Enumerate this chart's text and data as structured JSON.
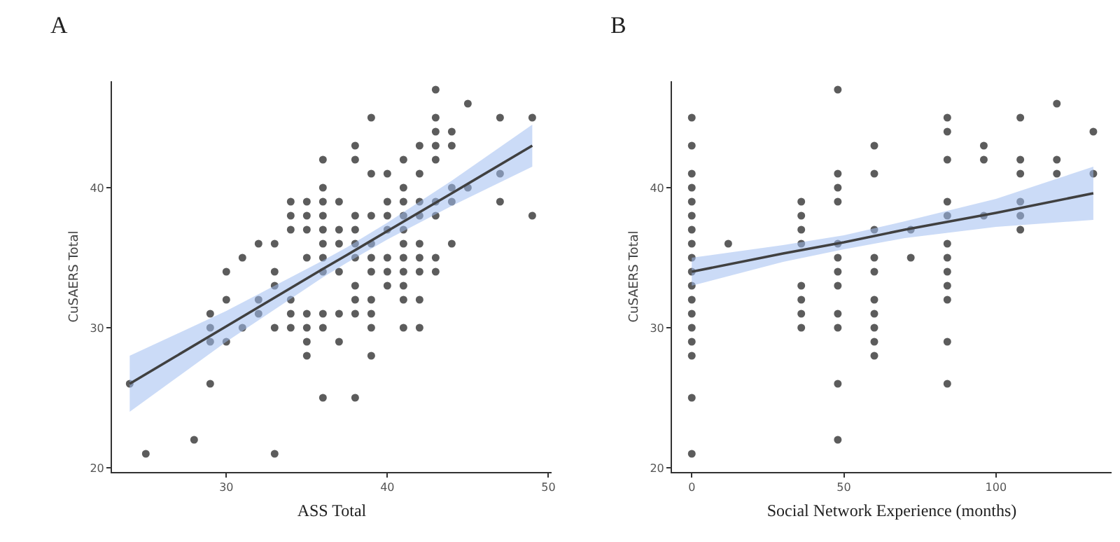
{
  "chart_data": [
    {
      "type": "scatter",
      "title": "A",
      "xlabel": "ASS Total",
      "ylabel": "CuSAERS Total",
      "xlim": [
        22.9,
        50.2
      ],
      "ylim": [
        19.7,
        47.6
      ],
      "xticks": [
        30,
        40,
        50
      ],
      "yticks": [
        20,
        30,
        40
      ],
      "grid": false,
      "marker": "circle",
      "series": [
        {
          "color": "#333333",
          "x": [
            39,
            43,
            47,
            49,
            43,
            44,
            38,
            42,
            43,
            44,
            36,
            38,
            41,
            43,
            39,
            40,
            42,
            47,
            36,
            41,
            44,
            45,
            34,
            35,
            36,
            37,
            40,
            41,
            42,
            43,
            44,
            47,
            34,
            35,
            36,
            38,
            39,
            40,
            41,
            42,
            43,
            49,
            34,
            35,
            36,
            37,
            38,
            40,
            41,
            32,
            33,
            36,
            37,
            38,
            39,
            41,
            42,
            44,
            31,
            35,
            36,
            38,
            39,
            40,
            41,
            42,
            43,
            30,
            33,
            36,
            37,
            39,
            40,
            41,
            42,
            43,
            33,
            38,
            40,
            41,
            30,
            32,
            34,
            38,
            39,
            41,
            42,
            29,
            32,
            34,
            35,
            36,
            37,
            38,
            39,
            29,
            31,
            33,
            34,
            35,
            36,
            39,
            41,
            42,
            29,
            30,
            35,
            37,
            35,
            39,
            24,
            29,
            36,
            38,
            28,
            25,
            33,
            43,
            45
          ],
          "values": [
            45,
            45,
            45,
            45,
            44,
            44,
            43,
            43,
            43,
            43,
            42,
            42,
            42,
            42,
            41,
            41,
            41,
            41,
            40,
            40,
            40,
            40,
            39,
            39,
            39,
            39,
            39,
            39,
            39,
            39,
            39,
            39,
            38,
            38,
            38,
            38,
            38,
            38,
            38,
            38,
            38,
            38,
            37,
            37,
            37,
            37,
            37,
            37,
            37,
            36,
            36,
            36,
            36,
            36,
            36,
            36,
            36,
            36,
            35,
            35,
            35,
            35,
            35,
            35,
            35,
            35,
            35,
            34,
            34,
            34,
            34,
            34,
            34,
            34,
            34,
            34,
            33,
            33,
            33,
            33,
            32,
            32,
            32,
            32,
            32,
            32,
            32,
            31,
            31,
            31,
            31,
            31,
            31,
            31,
            31,
            30,
            30,
            30,
            30,
            30,
            30,
            30,
            30,
            30,
            29,
            29,
            29,
            29,
            28,
            28,
            26,
            26,
            25,
            25,
            22,
            21,
            21,
            47,
            46
          ]
        },
        {
          "type": "line",
          "color": "#404040",
          "line_style": "solid",
          "marker": "none",
          "x": [
            24,
            30,
            36,
            37.5,
            40,
            44,
            49
          ],
          "values": [
            26,
            30.1,
            34.2,
            35.2,
            36.9,
            39.6,
            43
          ],
          "lower": [
            24,
            29,
            33.6,
            34.65,
            36.3,
            38.7,
            41.5
          ],
          "upper": [
            28,
            31.2,
            34.8,
            35.75,
            37.5,
            40.5,
            44.5
          ]
        }
      ]
    },
    {
      "type": "scatter",
      "title": "B",
      "xlabel": "Social Network Experience (months)",
      "ylabel": "CuSAERS Total",
      "xlim": [
        -6.5,
        138
      ],
      "ylim": [
        19.7,
        47.6
      ],
      "xticks": [
        0,
        50,
        100
      ],
      "yticks": [
        20,
        30,
        40
      ],
      "grid": false,
      "marker": "circle",
      "series": [
        {
          "color": "#333333",
          "x": [
            0,
            0,
            0,
            0,
            0,
            0,
            0,
            0,
            0,
            0,
            0,
            0,
            0,
            0,
            0,
            0,
            0,
            0,
            12,
            36,
            36,
            36,
            36,
            36,
            36,
            36,
            36,
            48,
            48,
            48,
            48,
            48,
            48,
            48,
            48,
            48,
            48,
            48,
            48,
            60,
            60,
            60,
            60,
            60,
            60,
            60,
            60,
            60,
            60,
            72,
            72,
            84,
            84,
            84,
            84,
            84,
            84,
            84,
            84,
            84,
            84,
            84,
            84,
            96,
            96,
            96,
            108,
            108,
            108,
            108,
            108,
            108,
            120,
            120,
            120,
            132,
            132
          ],
          "values": [
            45,
            43,
            41,
            40,
            39,
            38,
            37,
            36,
            35,
            34,
            33,
            32,
            31,
            30,
            29,
            28,
            25,
            21,
            36,
            39,
            38,
            37,
            36,
            33,
            32,
            31,
            30,
            47,
            41,
            40,
            39,
            36,
            35,
            34,
            33,
            31,
            30,
            26,
            22,
            43,
            41,
            37,
            35,
            34,
            32,
            31,
            30,
            29,
            28,
            37,
            35,
            45,
            44,
            42,
            39,
            38,
            36,
            35,
            34,
            33,
            32,
            29,
            26,
            43,
            42,
            38,
            45,
            42,
            41,
            39,
            38,
            37,
            46,
            42,
            41,
            44,
            41
          ]
        },
        {
          "type": "line",
          "color": "#404040",
          "line_style": "solid",
          "marker": "none",
          "x": [
            0,
            30,
            50,
            70,
            100,
            132
          ],
          "values": [
            34,
            35.3,
            36.1,
            37,
            38.2,
            39.6
          ],
          "lower": [
            33,
            34.7,
            35.6,
            36.4,
            37.2,
            37.7
          ],
          "upper": [
            35,
            35.9,
            36.6,
            37.6,
            39.2,
            41.5
          ]
        }
      ]
    }
  ]
}
